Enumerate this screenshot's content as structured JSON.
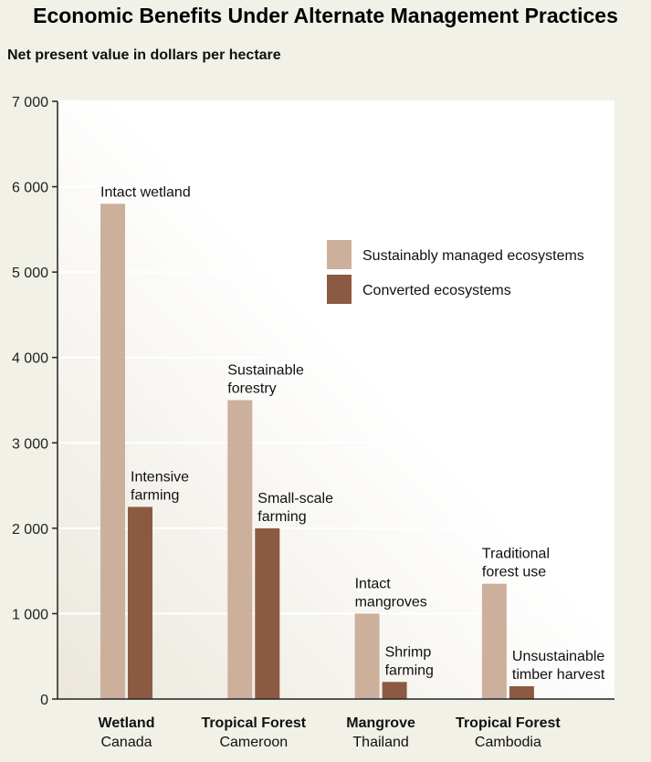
{
  "chart_data": {
    "type": "bar",
    "title": "Economic Benefits Under Alternate Management Practices",
    "ylabel": "Net present value in dollars per hectare",
    "ylim": [
      0,
      7000
    ],
    "yticks": [
      0,
      1000,
      2000,
      3000,
      4000,
      5000,
      6000,
      7000
    ],
    "ytick_labels": [
      "0",
      "1 000",
      "2 000",
      "3 000",
      "4 000",
      "5 000",
      "6 000",
      "7 000"
    ],
    "grid": true,
    "legend_position": "top-right",
    "categories": [
      {
        "name": "Wetland",
        "sub": "Canada"
      },
      {
        "name": "Tropical Forest",
        "sub": "Cameroon"
      },
      {
        "name": "Mangrove",
        "sub": "Thailand"
      },
      {
        "name": "Tropical Forest",
        "sub": "Cambodia"
      }
    ],
    "series": [
      {
        "name": "Sustainably managed ecosystems",
        "color": "#ccb09c",
        "values": [
          5800,
          3500,
          1000,
          1350
        ],
        "labels": [
          [
            "Intact wetland"
          ],
          [
            "Sustainable",
            "forestry"
          ],
          [
            "Intact",
            "mangroves"
          ],
          [
            "Traditional",
            "forest use"
          ]
        ]
      },
      {
        "name": "Converted ecosystems",
        "color": "#8c5a42",
        "values": [
          2250,
          2000,
          200,
          150
        ],
        "labels": [
          [
            "Intensive",
            "farming"
          ],
          [
            "Small-scale",
            "farming"
          ],
          [
            "Shrimp",
            "farming"
          ],
          [
            "Unsustainable",
            "timber harvest"
          ]
        ]
      }
    ]
  }
}
